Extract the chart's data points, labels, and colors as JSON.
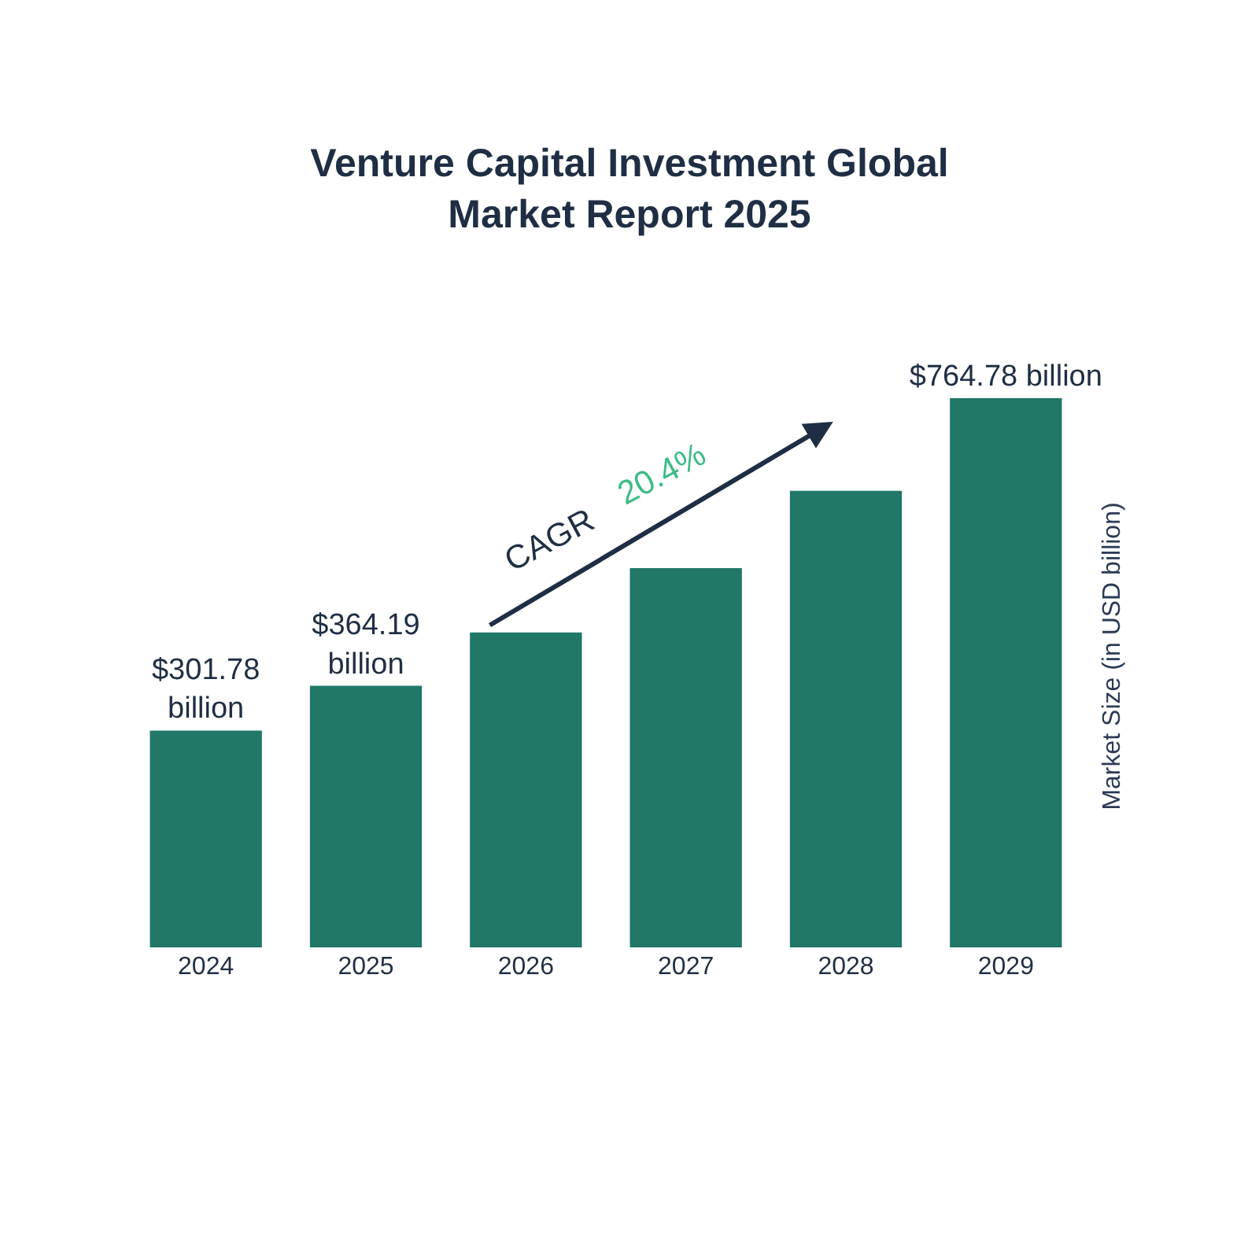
{
  "chart_data": {
    "type": "bar",
    "title": "Venture Capital Investment Global Market Report 2025",
    "ylabel": "Market Size (in USD billion)",
    "categories": [
      "2024",
      "2025",
      "2026",
      "2027",
      "2028",
      "2029"
    ],
    "values": [
      301.78,
      364.19,
      438.5,
      527.9,
      635.6,
      764.78
    ],
    "value_labels": [
      "$301.78 billion",
      "$364.19 billion",
      null,
      null,
      null,
      "$764.78 billion"
    ],
    "color": "#217867",
    "annotations": [
      "CAGR",
      "20.4%"
    ]
  }
}
